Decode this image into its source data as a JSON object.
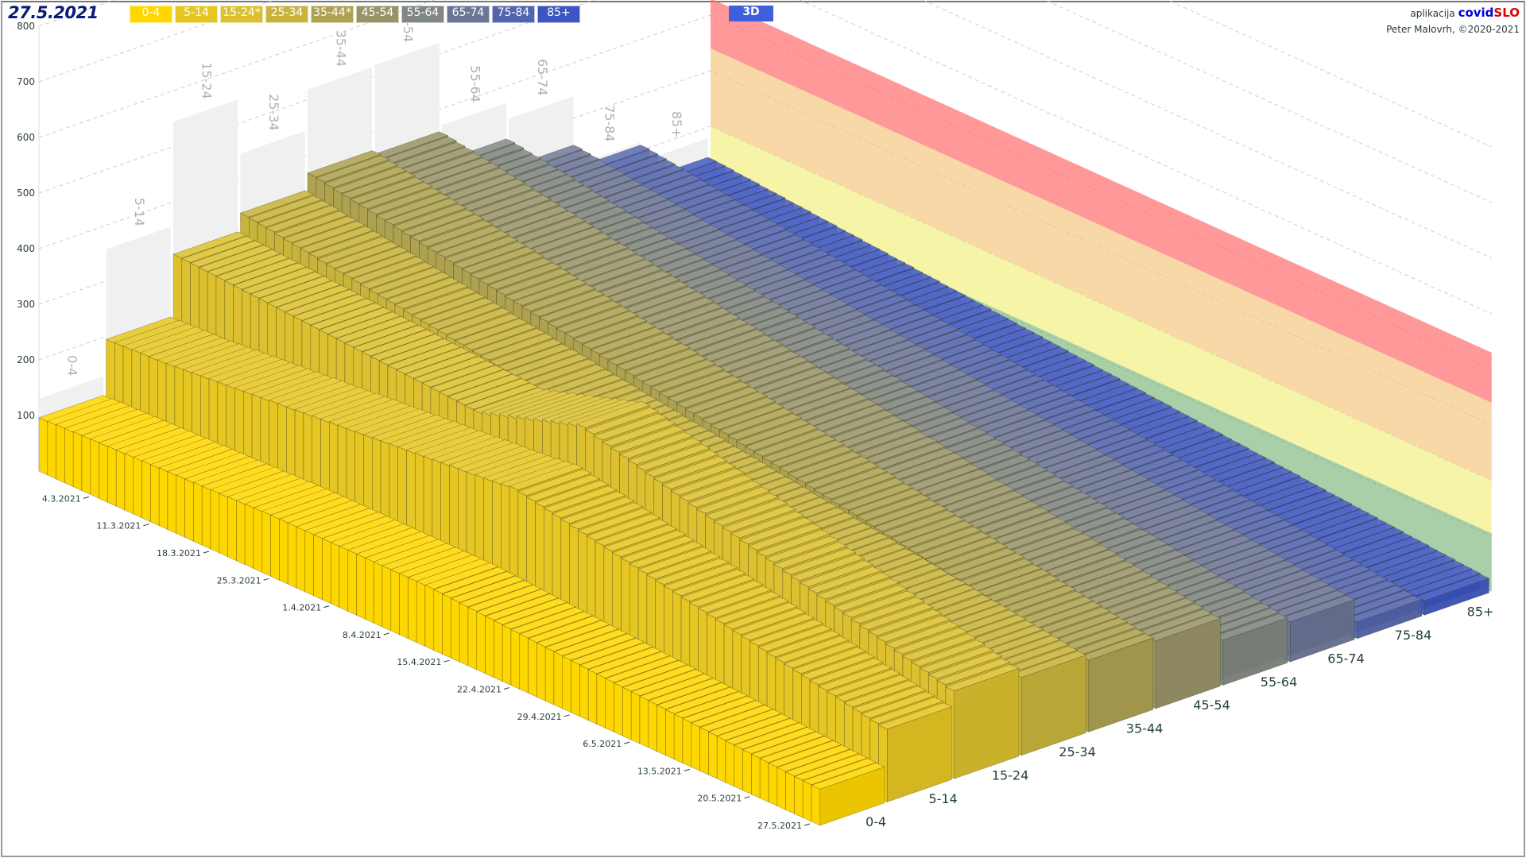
{
  "header": {
    "date": "27.5.2021",
    "view_button": "3D",
    "credits_prefix": "aplikacija",
    "brand_a": "covid",
    "brand_b": "SLO",
    "author": "Peter Malovrh, ©2020-2021"
  },
  "legend": [
    {
      "label": "0-4",
      "color": "#ffd700"
    },
    {
      "label": "5-14",
      "color": "#e6c623"
    },
    {
      "label": "15-24*",
      "color": "#dcc030"
    },
    {
      "label": "25-34",
      "color": "#c8b43c"
    },
    {
      "label": "35-44*",
      "color": "#aea250"
    },
    {
      "label": "45-54",
      "color": "#999468"
    },
    {
      "label": "55-64",
      "color": "#808680"
    },
    {
      "label": "65-74",
      "color": "#6b7595"
    },
    {
      "label": "75-84",
      "color": "#5365ad"
    },
    {
      "label": "85+",
      "color": "#3c55c0"
    }
  ],
  "chart_data": {
    "type": "bar3d",
    "title": "27.5.2021",
    "y_ticks": [
      "100",
      "200",
      "300",
      "400",
      "500",
      "600",
      "700",
      "800"
    ],
    "ylim": [
      0,
      800
    ],
    "date_labels": [
      "4.3.2021",
      "11.3.2021",
      "18.3.2021",
      "25.3.2021",
      "1.4.2021",
      "8.4.2021",
      "15.4.2021",
      "22.4.2021",
      "29.4.2021",
      "6.5.2021",
      "13.5.2021",
      "20.5.2021",
      "27.5.2021"
    ],
    "date_label_first_index": 6,
    "date_label_step": 7,
    "thresholds": [
      {
        "from": 0,
        "to": 105,
        "color": "rgba(110,175,110,0.6)"
      },
      {
        "from": 105,
        "to": 200,
        "color": "rgba(240,238,120,0.65)"
      },
      {
        "from": 200,
        "to": 340,
        "color": "rgba(245,195,120,0.65)"
      },
      {
        "from": 340,
        "to": 430,
        "color": "rgba(255,110,110,0.7)"
      }
    ],
    "series": [
      {
        "name": "0-4",
        "color": "#ffd700",
        "peak": 130,
        "values": [
          96,
          97,
          98,
          98,
          99,
          99,
          100,
          100,
          101,
          101,
          102,
          102,
          103,
          103,
          104,
          104,
          105,
          105,
          106,
          106,
          107,
          107,
          108,
          108,
          109,
          109,
          110,
          110,
          110,
          110,
          110,
          110,
          110,
          110,
          110,
          110,
          110,
          110,
          110,
          110,
          110,
          110,
          110,
          110,
          110,
          110,
          109,
          108,
          107,
          106,
          105,
          104,
          103,
          102,
          101,
          100,
          99,
          98,
          97,
          96,
          95,
          94,
          93,
          92,
          91,
          90,
          89,
          88,
          87,
          86,
          85,
          84,
          83,
          82,
          81,
          80,
          79,
          78,
          77,
          76,
          75,
          74,
          73,
          72,
          71,
          70,
          69,
          68,
          67,
          66,
          65
        ]
      },
      {
        "name": "5-14",
        "color": "#e6c623",
        "peak": 357,
        "values": [
          195,
          196,
          197,
          198,
          199,
          199,
          200,
          201,
          203,
          204,
          206,
          207,
          209,
          210,
          211,
          213,
          214,
          216,
          217,
          219,
          220,
          221,
          223,
          224,
          226,
          227,
          229,
          230,
          231,
          233,
          234,
          236,
          237,
          239,
          240,
          241,
          243,
          244,
          246,
          247,
          249,
          250,
          251,
          253,
          254,
          256,
          258,
          260,
          257,
          254,
          251,
          248,
          245,
          242,
          239,
          236,
          233,
          230,
          227,
          224,
          221,
          218,
          215,
          212,
          209,
          206,
          203,
          200,
          197,
          194,
          191,
          188,
          185,
          182,
          179,
          176,
          173,
          170,
          167,
          164,
          161,
          158,
          155,
          152,
          149,
          146,
          143,
          140,
          137,
          134,
          131
        ]
      },
      {
        "name": "15-24",
        "color": "#dcc030",
        "peak": 544,
        "values": [
          306,
          305,
          304,
          303,
          302,
          301,
          300,
          299,
          298,
          297,
          296,
          295,
          294,
          293,
          292,
          291,
          290,
          289,
          288,
          287,
          286,
          285,
          284,
          283,
          282,
          281,
          280,
          279,
          278,
          277,
          276,
          275,
          274,
          273,
          272,
          271,
          275,
          280,
          285,
          290,
          295,
          300,
          305,
          310,
          315,
          320,
          325,
          330,
          326,
          322,
          318,
          314,
          310,
          306,
          302,
          298,
          294,
          290,
          286,
          282,
          278,
          274,
          270,
          266,
          262,
          258,
          254,
          250,
          246,
          242,
          238,
          234,
          230,
          226,
          222,
          218,
          214,
          210,
          206,
          202,
          198,
          194,
          190,
          186,
          182,
          178,
          174,
          170,
          166,
          162,
          158
        ]
      },
      {
        "name": "25-34",
        "color": "#c8b43c",
        "peak": 445,
        "values": [
          338,
          336,
          334,
          332,
          329,
          327,
          325,
          323,
          321,
          318,
          316,
          314,
          312,
          310,
          307,
          305,
          303,
          301,
          299,
          296,
          294,
          292,
          290,
          288,
          285,
          283,
          281,
          279,
          277,
          274,
          272,
          270,
          268,
          266,
          263,
          261,
          259,
          257,
          255,
          252,
          250,
          248,
          246,
          244,
          241,
          239,
          237,
          235,
          233,
          230,
          228,
          226,
          224,
          222,
          219,
          217,
          215,
          213,
          211,
          208,
          206,
          204,
          202,
          200,
          197,
          195,
          193,
          191,
          189,
          186,
          184,
          182,
          180,
          178,
          175,
          173,
          171,
          169,
          167,
          164,
          162,
          160,
          158,
          156,
          153,
          151,
          149,
          147,
          145,
          142,
          140
        ]
      },
      {
        "name": "35-44",
        "color": "#aea250",
        "peak": 518,
        "values": [
          368,
          366,
          363,
          360,
          358,
          355,
          353,
          350,
          347,
          345,
          342,
          339,
          337,
          334,
          331,
          329,
          326,
          323,
          321,
          318,
          315,
          313,
          310,
          307,
          305,
          302,
          299,
          297,
          294,
          291,
          289,
          286,
          283,
          281,
          278,
          275,
          273,
          270,
          267,
          265,
          262,
          259,
          257,
          254,
          251,
          249,
          246,
          243,
          241,
          238,
          235,
          233,
          230,
          227,
          225,
          222,
          219,
          217,
          214,
          211,
          209,
          206,
          203,
          201,
          198,
          195,
          193,
          190,
          187,
          185,
          182,
          179,
          177,
          174,
          171,
          169,
          166,
          163,
          161,
          158,
          155,
          153,
          150,
          147,
          145,
          142,
          139,
          137,
          134,
          131,
          129
        ]
      },
      {
        "name": "45-54",
        "color": "#999468",
        "peak": 520,
        "values": [
          360,
          358,
          355,
          353,
          350,
          348,
          346,
          343,
          340,
          338,
          335,
          332,
          330,
          327,
          324,
          322,
          319,
          316,
          314,
          311,
          308,
          306,
          303,
          300,
          298,
          295,
          292,
          290,
          287,
          284,
          282,
          279,
          276,
          274,
          271,
          268,
          266,
          263,
          260,
          258,
          255,
          252,
          250,
          247,
          244,
          242,
          239,
          236,
          234,
          231,
          228,
          226,
          223,
          220,
          218,
          215,
          212,
          210,
          207,
          204,
          202,
          199,
          196,
          194,
          191,
          188,
          186,
          183,
          180,
          178,
          175,
          172,
          170,
          167,
          164,
          162,
          159,
          156,
          154,
          151,
          148,
          146,
          143,
          140,
          138,
          135,
          132,
          130,
          127,
          124,
          122
        ]
      },
      {
        "name": "55-64",
        "color": "#808680",
        "peak": 370,
        "values": [
          305,
          303,
          300,
          298,
          296,
          293,
          291,
          289,
          286,
          284,
          281,
          279,
          276,
          274,
          271,
          269,
          266,
          264,
          261,
          259,
          256,
          254,
          251,
          249,
          246,
          244,
          241,
          239,
          236,
          234,
          231,
          229,
          226,
          224,
          221,
          219,
          216,
          214,
          211,
          209,
          206,
          204,
          201,
          199,
          196,
          194,
          191,
          189,
          186,
          184,
          181,
          179,
          176,
          174,
          171,
          169,
          166,
          164,
          161,
          159,
          156,
          154,
          151,
          149,
          146,
          144,
          141,
          139,
          136,
          134,
          131,
          129,
          126,
          124,
          121,
          119,
          116,
          114,
          111,
          109,
          106,
          104,
          101,
          99,
          96,
          94,
          91,
          89,
          86,
          84,
          81
        ]
      },
      {
        "name": "65-74",
        "color": "#6b7595",
        "peak": 340,
        "values": [
          252,
          250,
          248,
          246,
          244,
          242,
          240,
          238,
          236,
          234,
          232,
          230,
          228,
          226,
          224,
          222,
          220,
          218,
          216,
          214,
          212,
          210,
          208,
          206,
          204,
          202,
          200,
          198,
          196,
          194,
          192,
          190,
          188,
          186,
          184,
          182,
          180,
          178,
          176,
          174,
          172,
          170,
          168,
          166,
          164,
          162,
          160,
          158,
          156,
          154,
          152,
          150,
          148,
          146,
          144,
          142,
          140,
          138,
          136,
          134,
          132,
          130,
          128,
          126,
          124,
          122,
          120,
          118,
          116,
          114,
          112,
          110,
          108,
          106,
          104,
          102,
          100,
          98,
          96,
          94,
          92,
          90,
          88,
          86,
          84,
          82,
          80,
          78,
          76,
          74,
          72
        ]
      },
      {
        "name": "75-84",
        "color": "#5365ad",
        "peak": 215,
        "values": [
          210,
          208,
          206,
          204,
          202,
          200,
          198,
          196,
          194,
          192,
          190,
          188,
          186,
          184,
          182,
          180,
          178,
          176,
          174,
          172,
          170,
          168,
          166,
          164,
          162,
          160,
          158,
          156,
          154,
          152,
          150,
          148,
          146,
          144,
          142,
          140,
          138,
          136,
          134,
          132,
          130,
          128,
          126,
          124,
          122,
          120,
          118,
          116,
          114,
          112,
          110,
          108,
          106,
          104,
          102,
          100,
          98,
          96,
          94,
          92,
          90,
          88,
          86,
          84,
          82,
          80,
          78,
          76,
          74,
          72,
          70,
          68,
          66,
          64,
          62,
          60,
          58,
          56,
          54,
          52,
          50,
          48,
          46,
          44,
          42,
          40,
          38,
          36,
          34,
          32,
          30
        ]
      },
      {
        "name": "85+",
        "color": "#3c55c0",
        "peak": 180,
        "values": [
          146,
          145,
          144,
          142,
          141,
          140,
          138,
          137,
          136,
          134,
          133,
          132,
          130,
          129,
          128,
          126,
          125,
          124,
          122,
          121,
          120,
          118,
          117,
          116,
          114,
          113,
          112,
          110,
          109,
          108,
          106,
          105,
          104,
          102,
          101,
          100,
          98,
          97,
          96,
          94,
          93,
          92,
          90,
          89,
          88,
          86,
          85,
          84,
          82,
          81,
          80,
          78,
          77,
          76,
          74,
          73,
          72,
          70,
          69,
          68,
          66,
          65,
          64,
          62,
          61,
          60,
          58,
          57,
          56,
          54,
          53,
          52,
          50,
          49,
          48,
          46,
          45,
          44,
          42,
          41,
          40,
          38,
          37,
          36,
          34,
          33,
          32,
          30,
          29,
          28,
          26
        ]
      }
    ]
  }
}
